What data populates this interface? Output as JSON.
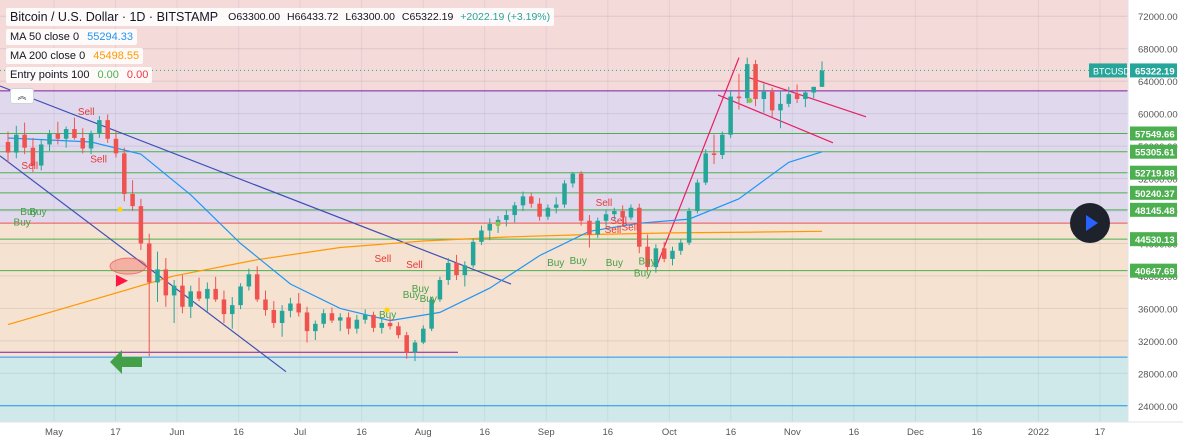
{
  "header": {
    "symbol": "Bitcoin / U.S. Dollar · 1D · BITSTAMP",
    "ohlc": {
      "o": "O63300.00",
      "h": "H66433.72",
      "l": "L63300.00",
      "c": "C65322.19",
      "chg": "+2022.19 (+3.19%)"
    },
    "indicators": [
      {
        "label": "MA 50 close 0",
        "value": "55294.33",
        "color": "#2196f3"
      },
      {
        "label": "MA 200 close 0",
        "value": "45498.55",
        "color": "#ff9800"
      },
      {
        "label": "Entry points 100",
        "value": "0.00",
        "value2": "0.00",
        "color": "#4caf50",
        "color2": "#f23645"
      }
    ],
    "collapse_glyph": "︽"
  },
  "colors": {
    "bull": "#26a69a",
    "bear": "#ef5350",
    "ma50": "#2196f3",
    "ma200": "#ff9800",
    "level": "#4caf50",
    "trend": "#3f51b5",
    "channel": "#e91e63",
    "zone_top": "#f5dada",
    "zone_mid": "#e0d9ee",
    "zone_low": "#f6e2d0",
    "zone_bottom": "#cfe9ea"
  },
  "chart_data": {
    "type": "candlestick",
    "symbol_tag": "BTCUSD",
    "last_price": "65322.19",
    "ylim": [
      22000,
      74000
    ],
    "y_ticks": [
      "72000.00",
      "68000.00",
      "64000.00",
      "60000.00",
      "56000.00",
      "52000.00",
      "48000.00",
      "44000.00",
      "40000.00",
      "36000.00",
      "32000.00",
      "28000.00",
      "24000.00"
    ],
    "x_ticks": [
      "May",
      "17",
      "Jun",
      "16",
      "Jul",
      "16",
      "Aug",
      "16",
      "Sep",
      "16",
      "Oct",
      "16",
      "Nov",
      "16",
      "Dec",
      "16",
      "2022",
      "17"
    ],
    "levels": [
      {
        "value": 57549.66,
        "label": "57549.66"
      },
      {
        "value": 55305.61,
        "label": "55305.61"
      },
      {
        "value": 52719.88,
        "label": "52719.88"
      },
      {
        "value": 50240.37,
        "label": "50240.37"
      },
      {
        "value": 48145.48,
        "label": "48145.48"
      },
      {
        "value": 44530.13,
        "label": "44530.13"
      },
      {
        "value": 40647.69,
        "label": "40647.69"
      }
    ],
    "zones": [
      {
        "from": 62800,
        "to": 74000,
        "color": "zone_top"
      },
      {
        "from": 46500,
        "to": 62800,
        "color": "zone_mid"
      },
      {
        "from": 30000,
        "to": 46500,
        "color": "zone_low"
      },
      {
        "from": 22000,
        "to": 30000,
        "color": "zone_bottom"
      }
    ],
    "signals": [
      {
        "text": "Sell",
        "x": 0.069,
        "y": 59800
      },
      {
        "text": "Sell",
        "x": 0.019,
        "y": 53200
      },
      {
        "text": "Sell",
        "x": 0.08,
        "y": 54000
      },
      {
        "text": "Buy",
        "x": 0.018,
        "y": 47500
      },
      {
        "text": "Buy",
        "x": 0.026,
        "y": 47500
      },
      {
        "text": "Buy",
        "x": 0.012,
        "y": 46200
      },
      {
        "text": "Sell",
        "x": 0.332,
        "y": 41700
      },
      {
        "text": "Sell",
        "x": 0.36,
        "y": 41000
      },
      {
        "text": "Buy",
        "x": 0.357,
        "y": 37300
      },
      {
        "text": "Buy",
        "x": 0.372,
        "y": 36800
      },
      {
        "text": "Buy",
        "x": 0.365,
        "y": 38000
      },
      {
        "text": "Buy",
        "x": 0.336,
        "y": 34800
      },
      {
        "text": "Sell",
        "x": 0.528,
        "y": 48600
      },
      {
        "text": "Sell",
        "x": 0.541,
        "y": 46400
      },
      {
        "text": "Sell",
        "x": 0.536,
        "y": 45300
      },
      {
        "text": "Sell",
        "x": 0.551,
        "y": 45600
      },
      {
        "text": "Buy",
        "x": 0.485,
        "y": 41200
      },
      {
        "text": "Buy",
        "x": 0.505,
        "y": 41500
      },
      {
        "text": "Buy",
        "x": 0.537,
        "y": 41200
      },
      {
        "text": "Buy",
        "x": 0.566,
        "y": 41400
      },
      {
        "text": "Buy",
        "x": 0.562,
        "y": 39900
      }
    ],
    "candles": [
      [
        56500,
        57800,
        54000,
        55200
      ],
      [
        55200,
        58500,
        54500,
        57400
      ],
      [
        57400,
        58900,
        55000,
        55800
      ],
      [
        55800,
        57000,
        52800,
        53600
      ],
      [
        53600,
        56800,
        53000,
        56200
      ],
      [
        56200,
        58000,
        55400,
        57500
      ],
      [
        57500,
        59000,
        56200,
        56900
      ],
      [
        56900,
        58400,
        55800,
        58100
      ],
      [
        58100,
        59500,
        56800,
        57000
      ],
      [
        57000,
        58200,
        55100,
        55700
      ],
      [
        55700,
        57900,
        55000,
        57600
      ],
      [
        57600,
        59700,
        57000,
        59200
      ],
      [
        59200,
        59900,
        56400,
        56900
      ],
      [
        56900,
        58000,
        54600,
        55100
      ],
      [
        55100,
        55800,
        49200,
        50100
      ],
      [
        50100,
        51800,
        48000,
        48600
      ],
      [
        48600,
        49500,
        43200,
        44000
      ],
      [
        44000,
        45200,
        30100,
        39200
      ],
      [
        39200,
        43000,
        36800,
        40800
      ],
      [
        40800,
        42200,
        36200,
        37600
      ],
      [
        37600,
        39500,
        34200,
        38800
      ],
      [
        38800,
        40100,
        35400,
        36200
      ],
      [
        36200,
        38800,
        34800,
        38100
      ],
      [
        38100,
        39800,
        36900,
        37200
      ],
      [
        37200,
        39200,
        35600,
        38400
      ],
      [
        38400,
        39900,
        36800,
        37100
      ],
      [
        37100,
        38200,
        34200,
        35300
      ],
      [
        35300,
        37400,
        33500,
        36400
      ],
      [
        36400,
        39100,
        35900,
        38700
      ],
      [
        38700,
        40900,
        38200,
        40200
      ],
      [
        40200,
        41200,
        36800,
        37100
      ],
      [
        37100,
        38200,
        35100,
        35800
      ],
      [
        35800,
        36900,
        33600,
        34200
      ],
      [
        34200,
        36400,
        32500,
        35700
      ],
      [
        35700,
        37300,
        34900,
        36600
      ],
      [
        36600,
        37900,
        35000,
        35500
      ],
      [
        35500,
        36200,
        31800,
        33200
      ],
      [
        33200,
        34500,
        32100,
        34100
      ],
      [
        34100,
        35900,
        33600,
        35400
      ],
      [
        35400,
        36100,
        34200,
        34500
      ],
      [
        34500,
        35400,
        33200,
        34900
      ],
      [
        34900,
        35500,
        32800,
        33500
      ],
      [
        33500,
        35200,
        32900,
        34600
      ],
      [
        34600,
        35900,
        34100,
        35200
      ],
      [
        35200,
        35600,
        33100,
        33600
      ],
      [
        33600,
        34800,
        32900,
        34200
      ],
      [
        34200,
        34900,
        33400,
        33800
      ],
      [
        33800,
        34300,
        32300,
        32700
      ],
      [
        32700,
        33100,
        29800,
        30600
      ],
      [
        30600,
        32100,
        29500,
        31800
      ],
      [
        31800,
        33900,
        31600,
        33500
      ],
      [
        33500,
        37400,
        33200,
        37100
      ],
      [
        37100,
        39900,
        36800,
        39500
      ],
      [
        39500,
        42200,
        38900,
        41600
      ],
      [
        41600,
        42600,
        39500,
        40100
      ],
      [
        40100,
        41800,
        38700,
        41300
      ],
      [
        41300,
        44600,
        41000,
        44200
      ],
      [
        44200,
        46200,
        43800,
        45600
      ],
      [
        45600,
        47100,
        44400,
        46400
      ],
      [
        46400,
        47400,
        45300,
        46900
      ],
      [
        46900,
        48100,
        46100,
        47500
      ],
      [
        47500,
        49100,
        46600,
        48700
      ],
      [
        48700,
        50400,
        48000,
        49800
      ],
      [
        49800,
        50200,
        48400,
        48900
      ],
      [
        48900,
        49600,
        46800,
        47300
      ],
      [
        47300,
        48800,
        46900,
        48400
      ],
      [
        48400,
        49700,
        47700,
        48800
      ],
      [
        48800,
        51800,
        48400,
        51400
      ],
      [
        51400,
        52800,
        50900,
        52600
      ],
      [
        52600,
        52900,
        46200,
        46800
      ],
      [
        46800,
        47500,
        43500,
        45100
      ],
      [
        45100,
        47200,
        44700,
        46800
      ],
      [
        46800,
        48200,
        46100,
        47600
      ],
      [
        47600,
        48400,
        46900,
        48000
      ],
      [
        48000,
        48700,
        46100,
        47200
      ],
      [
        47200,
        48800,
        46900,
        48400
      ],
      [
        48400,
        48900,
        42800,
        43600
      ],
      [
        43600,
        45100,
        40600,
        41100
      ],
      [
        41100,
        43900,
        40400,
        43400
      ],
      [
        43400,
        44200,
        41700,
        42100
      ],
      [
        42100,
        43600,
        41300,
        43100
      ],
      [
        43100,
        44500,
        42600,
        44100
      ],
      [
        44100,
        48400,
        43800,
        48000
      ],
      [
        48000,
        51900,
        47700,
        51500
      ],
      [
        51500,
        55600,
        51200,
        55100
      ],
      [
        55100,
        57400,
        53800,
        54900
      ],
      [
        54900,
        57800,
        54400,
        57400
      ],
      [
        57400,
        62900,
        57000,
        62100
      ],
      [
        62100,
        64900,
        60500,
        61900
      ],
      [
        61900,
        66900,
        61300,
        66100
      ],
      [
        66100,
        66600,
        60900,
        61800
      ],
      [
        61800,
        63700,
        60100,
        62700
      ],
      [
        62700,
        63200,
        59600,
        60400
      ],
      [
        60400,
        62800,
        58200,
        61200
      ],
      [
        61200,
        63300,
        60800,
        62400
      ],
      [
        62400,
        63600,
        61300,
        61800
      ],
      [
        61800,
        62900,
        60800,
        62600
      ],
      [
        62600,
        63300,
        61900,
        63300
      ],
      [
        63300,
        66430,
        63300,
        65322
      ]
    ],
    "ma50": [
      [
        0,
        57000
      ],
      [
        10,
        56500
      ],
      [
        16,
        55000
      ],
      [
        22,
        50000
      ],
      [
        28,
        44000
      ],
      [
        34,
        39000
      ],
      [
        40,
        36000
      ],
      [
        46,
        34500
      ],
      [
        52,
        35500
      ],
      [
        58,
        38500
      ],
      [
        64,
        42500
      ],
      [
        70,
        45500
      ],
      [
        76,
        46500
      ],
      [
        82,
        47000
      ],
      [
        88,
        49500
      ],
      [
        94,
        54000
      ],
      [
        98,
        55300
      ]
    ],
    "ma200": [
      [
        0,
        34000
      ],
      [
        10,
        37000
      ],
      [
        20,
        40000
      ],
      [
        30,
        42000
      ],
      [
        40,
        43500
      ],
      [
        50,
        44300
      ],
      [
        60,
        44800
      ],
      [
        70,
        45100
      ],
      [
        80,
        45300
      ],
      [
        90,
        45400
      ],
      [
        98,
        45500
      ]
    ]
  }
}
